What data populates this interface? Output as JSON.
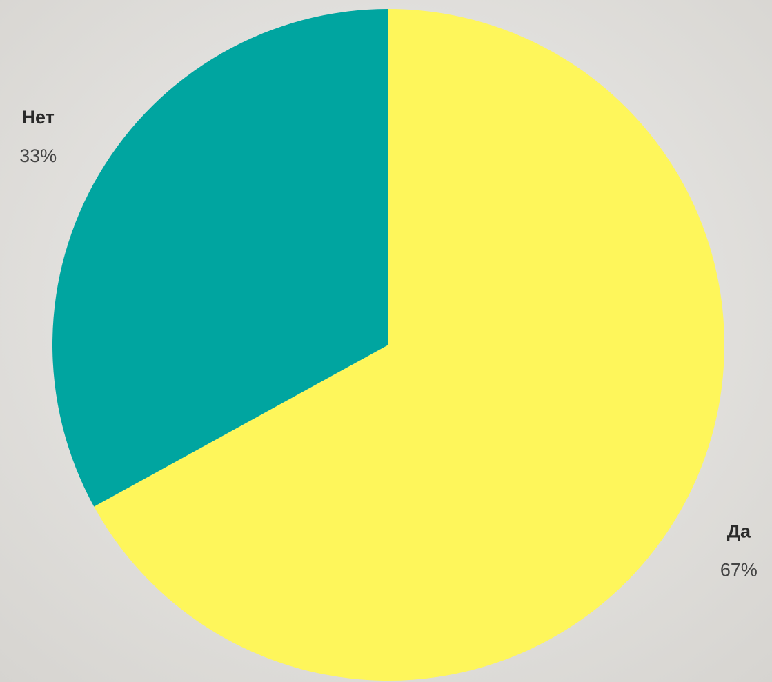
{
  "chart_data": {
    "type": "pie",
    "categories": [
      "Да",
      "Нет"
    ],
    "values": [
      67,
      33
    ],
    "value_labels": [
      "67%",
      "33%"
    ],
    "colors": [
      "#fef65b",
      "#00a5a0"
    ]
  }
}
